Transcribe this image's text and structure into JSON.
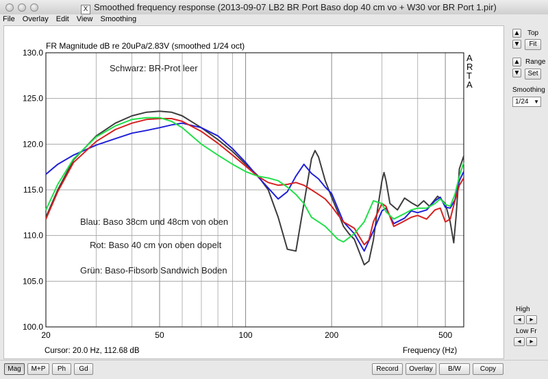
{
  "window": {
    "title": "Smoothed frequency response (2013-09-07 LB2 BR Port Baso dop 40 cm vo + W30 vor BR Port 1.pir)"
  },
  "menu": [
    {
      "label": "File"
    },
    {
      "label": "Overlay"
    },
    {
      "label": "Edit"
    },
    {
      "label": "View"
    },
    {
      "label": "Smoothing"
    }
  ],
  "plot": {
    "header": "FR Magnitude dB re 20uPa/2.83V (smoothed 1/24 oct)",
    "brand": [
      "A",
      "R",
      "T",
      "A"
    ],
    "cursor": "Cursor: 20.0 Hz, 112.68 dB",
    "xlabel": "Frequency (Hz)",
    "annotations": [
      {
        "text": "Schwarz: BR-Prot leer"
      },
      {
        "text": "Blau: Baso 38cm und 48cm von oben"
      },
      {
        "text": "Rot: Baso 40 cm von oben dopelt"
      },
      {
        "text": "Grün: Baso-Fibsorb Sandwich Boden"
      }
    ]
  },
  "chart_data": {
    "type": "line",
    "xscale": "log",
    "xlim": [
      20,
      580
    ],
    "ylim": [
      100,
      130
    ],
    "yticks": [
      "100.0",
      "105.0",
      "110.0",
      "115.0",
      "120.0",
      "125.0",
      "130.0"
    ],
    "xticks": [
      {
        "value": 20,
        "label": "20"
      },
      {
        "value": 50,
        "label": "50"
      },
      {
        "value": 100,
        "label": "100"
      },
      {
        "value": 200,
        "label": "200"
      },
      {
        "value": 500,
        "label": "500"
      }
    ],
    "grid": true,
    "series": [
      {
        "color": "#3c3c3c",
        "points": [
          [
            20,
            112.0
          ],
          [
            22,
            115.0
          ],
          [
            25,
            118.3
          ],
          [
            30,
            120.9
          ],
          [
            35,
            122.3
          ],
          [
            40,
            123.1
          ],
          [
            45,
            123.5
          ],
          [
            50,
            123.6
          ],
          [
            55,
            123.5
          ],
          [
            60,
            123.1
          ],
          [
            70,
            121.8
          ],
          [
            80,
            120.5
          ],
          [
            90,
            119.2
          ],
          [
            100,
            117.8
          ],
          [
            110,
            116.6
          ],
          [
            120,
            115.0
          ],
          [
            130,
            112.0
          ],
          [
            140,
            108.5
          ],
          [
            150,
            108.3
          ],
          [
            160,
            113.5
          ],
          [
            170,
            118.4
          ],
          [
            175,
            119.3
          ],
          [
            180,
            118.6
          ],
          [
            190,
            116.0
          ],
          [
            200,
            114.2
          ],
          [
            210,
            112.6
          ],
          [
            220,
            111.0
          ],
          [
            230,
            110.2
          ],
          [
            240,
            109.6
          ],
          [
            250,
            108.2
          ],
          [
            260,
            106.8
          ],
          [
            270,
            107.2
          ],
          [
            280,
            109.5
          ],
          [
            290,
            113.0
          ],
          [
            300,
            116.0
          ],
          [
            305,
            116.9
          ],
          [
            310,
            116.0
          ],
          [
            320,
            113.5
          ],
          [
            340,
            112.8
          ],
          [
            360,
            114.1
          ],
          [
            380,
            113.6
          ],
          [
            400,
            113.2
          ],
          [
            420,
            113.8
          ],
          [
            440,
            113.2
          ],
          [
            470,
            114.3
          ],
          [
            500,
            113.5
          ],
          [
            520,
            111.5
          ],
          [
            535,
            109.2
          ],
          [
            545,
            112.0
          ],
          [
            560,
            117.3
          ],
          [
            580,
            118.7
          ]
        ]
      },
      {
        "color": "#2020d8",
        "points": [
          [
            20,
            116.7
          ],
          [
            22,
            117.8
          ],
          [
            25,
            118.8
          ],
          [
            30,
            119.9
          ],
          [
            35,
            120.6
          ],
          [
            40,
            121.2
          ],
          [
            45,
            121.5
          ],
          [
            50,
            121.8
          ],
          [
            55,
            122.1
          ],
          [
            60,
            122.3
          ],
          [
            70,
            121.8
          ],
          [
            80,
            120.9
          ],
          [
            90,
            119.5
          ],
          [
            100,
            118.0
          ],
          [
            110,
            116.5
          ],
          [
            120,
            115.2
          ],
          [
            130,
            114.0
          ],
          [
            140,
            114.8
          ],
          [
            150,
            116.5
          ],
          [
            160,
            117.8
          ],
          [
            170,
            116.8
          ],
          [
            180,
            116.2
          ],
          [
            190,
            115.3
          ],
          [
            200,
            114.6
          ],
          [
            220,
            111.5
          ],
          [
            240,
            110.2
          ],
          [
            260,
            108.3
          ],
          [
            280,
            110.5
          ],
          [
            300,
            112.7
          ],
          [
            310,
            113.0
          ],
          [
            330,
            111.3
          ],
          [
            360,
            111.9
          ],
          [
            380,
            112.7
          ],
          [
            400,
            112.5
          ],
          [
            430,
            112.8
          ],
          [
            460,
            113.8
          ],
          [
            480,
            114.2
          ],
          [
            500,
            113.1
          ],
          [
            520,
            113.0
          ],
          [
            540,
            113.9
          ],
          [
            560,
            116.0
          ],
          [
            580,
            117.0
          ]
        ]
      },
      {
        "color": "#d62020",
        "points": [
          [
            20,
            111.8
          ],
          [
            22,
            114.8
          ],
          [
            25,
            118.0
          ],
          [
            30,
            120.3
          ],
          [
            35,
            121.6
          ],
          [
            40,
            122.3
          ],
          [
            45,
            122.7
          ],
          [
            50,
            122.8
          ],
          [
            55,
            122.8
          ],
          [
            60,
            122.5
          ],
          [
            70,
            121.4
          ],
          [
            80,
            120.1
          ],
          [
            90,
            118.8
          ],
          [
            100,
            117.6
          ],
          [
            110,
            116.5
          ],
          [
            120,
            115.8
          ],
          [
            130,
            115.5
          ],
          [
            140,
            115.6
          ],
          [
            150,
            115.8
          ],
          [
            160,
            115.5
          ],
          [
            170,
            115.0
          ],
          [
            180,
            114.5
          ],
          [
            190,
            114.0
          ],
          [
            200,
            113.2
          ],
          [
            210,
            112.3
          ],
          [
            220,
            111.5
          ],
          [
            240,
            110.8
          ],
          [
            260,
            109.0
          ],
          [
            270,
            109.5
          ],
          [
            280,
            111.5
          ],
          [
            300,
            113.5
          ],
          [
            310,
            113.2
          ],
          [
            330,
            111.0
          ],
          [
            350,
            111.4
          ],
          [
            380,
            112.0
          ],
          [
            400,
            112.2
          ],
          [
            430,
            111.8
          ],
          [
            460,
            112.8
          ],
          [
            480,
            113.0
          ],
          [
            500,
            111.5
          ],
          [
            520,
            111.8
          ],
          [
            540,
            113.8
          ],
          [
            560,
            115.5
          ],
          [
            580,
            116.3
          ]
        ]
      },
      {
        "color": "#20e048",
        "points": [
          [
            20,
            112.8
          ],
          [
            22,
            115.6
          ],
          [
            25,
            118.4
          ],
          [
            30,
            120.8
          ],
          [
            35,
            122.0
          ],
          [
            40,
            122.7
          ],
          [
            45,
            122.9
          ],
          [
            50,
            122.9
          ],
          [
            55,
            122.5
          ],
          [
            60,
            121.8
          ],
          [
            70,
            120.0
          ],
          [
            80,
            118.8
          ],
          [
            90,
            117.8
          ],
          [
            100,
            117.0
          ],
          [
            110,
            116.5
          ],
          [
            120,
            116.3
          ],
          [
            130,
            116.0
          ],
          [
            140,
            115.3
          ],
          [
            150,
            114.5
          ],
          [
            160,
            113.5
          ],
          [
            170,
            112.0
          ],
          [
            180,
            111.5
          ],
          [
            190,
            111.0
          ],
          [
            200,
            110.3
          ],
          [
            210,
            109.6
          ],
          [
            220,
            109.3
          ],
          [
            240,
            110.2
          ],
          [
            260,
            111.5
          ],
          [
            280,
            113.8
          ],
          [
            300,
            113.5
          ],
          [
            310,
            112.6
          ],
          [
            330,
            111.8
          ],
          [
            360,
            112.4
          ],
          [
            380,
            112.8
          ],
          [
            400,
            113.0
          ],
          [
            430,
            113.0
          ],
          [
            460,
            113.5
          ],
          [
            480,
            114.0
          ],
          [
            500,
            113.4
          ],
          [
            520,
            113.2
          ],
          [
            540,
            114.5
          ],
          [
            560,
            116.5
          ],
          [
            580,
            118.0
          ]
        ]
      }
    ]
  },
  "sidebar": {
    "top_label": "Top",
    "fit_label": "Fit",
    "range_label": "Range",
    "set_label": "Set",
    "smoothing_label": "Smoothing",
    "smoothing_value": "1/24",
    "high_label": "High",
    "lowfr_label": "Low Fr"
  },
  "toolbar_left": [
    {
      "label": "Mag"
    },
    {
      "label": "M+P"
    },
    {
      "label": "Ph"
    },
    {
      "label": "Gd"
    }
  ],
  "toolbar_right": [
    {
      "label": "Record"
    },
    {
      "label": "Overlay"
    },
    {
      "label": "B/W"
    },
    {
      "label": "Copy"
    }
  ]
}
